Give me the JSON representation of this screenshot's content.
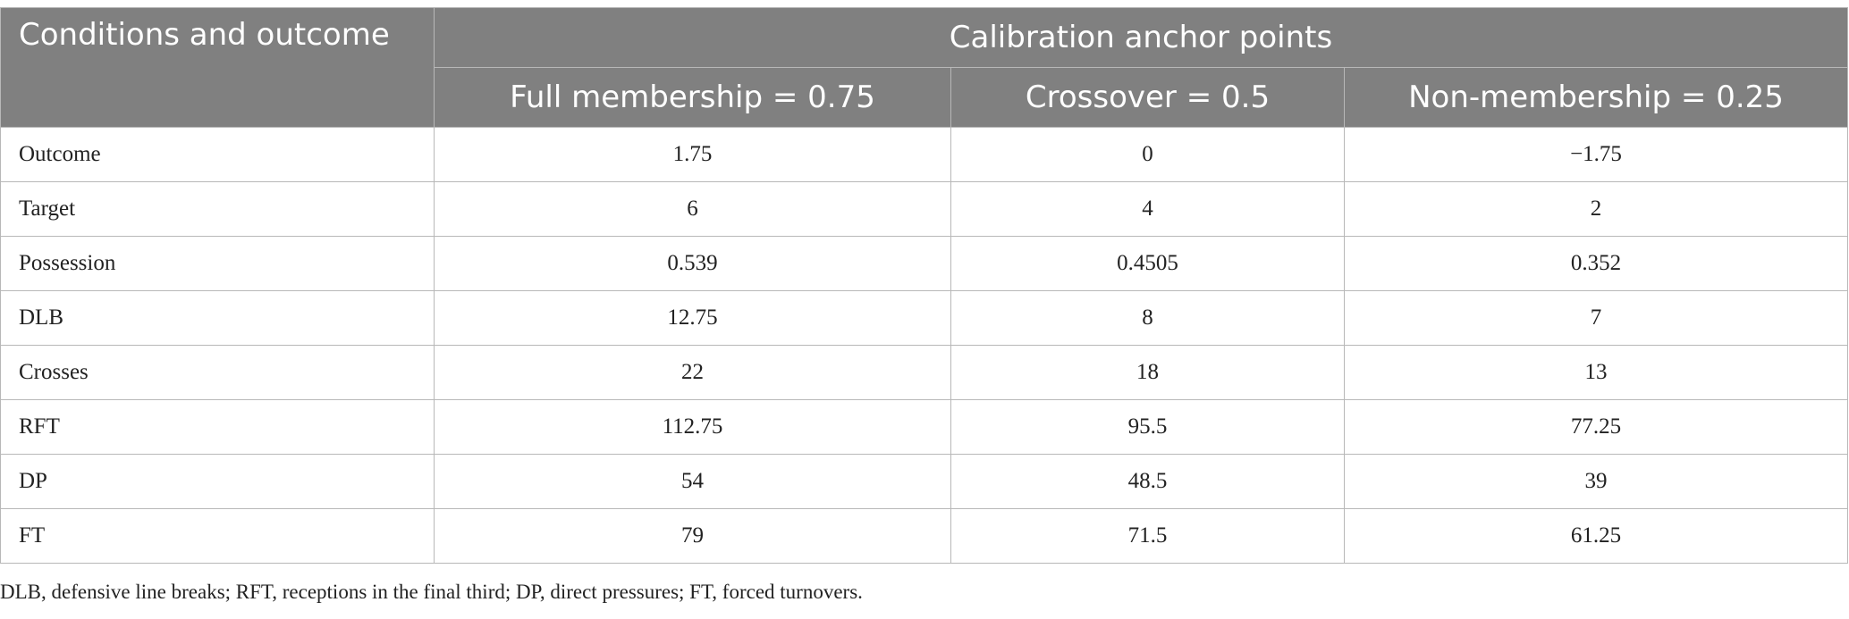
{
  "table": {
    "header": {
      "row_label": "Conditions and outcome",
      "group_label": "Calibration anchor points",
      "columns": [
        "Full membership = 0.75",
        "Crossover = 0.5",
        "Non-membership = 0.25"
      ]
    },
    "rows": [
      {
        "label": "Outcome",
        "values": [
          "1.75",
          "0",
          "−1.75"
        ]
      },
      {
        "label": "Target",
        "values": [
          "6",
          "4",
          "2"
        ]
      },
      {
        "label": "Possession",
        "values": [
          "0.539",
          "0.4505",
          "0.352"
        ]
      },
      {
        "label": "DLB",
        "values": [
          "12.75",
          "8",
          "7"
        ]
      },
      {
        "label": "Crosses",
        "values": [
          "22",
          "18",
          "13"
        ]
      },
      {
        "label": "RFT",
        "values": [
          "112.75",
          "95.5",
          "77.25"
        ]
      },
      {
        "label": "DP",
        "values": [
          "54",
          "48.5",
          "39"
        ]
      },
      {
        "label": "FT",
        "values": [
          "79",
          "71.5",
          "61.25"
        ]
      }
    ]
  },
  "footnote": "DLB, defensive line breaks; RFT, receptions in the final third; DP, direct pressures; FT, forced turnovers.",
  "colors": {
    "header_bg": "#808080",
    "header_text": "#ffffff",
    "grid": "#b8b8b8",
    "body_text": "#222222"
  }
}
